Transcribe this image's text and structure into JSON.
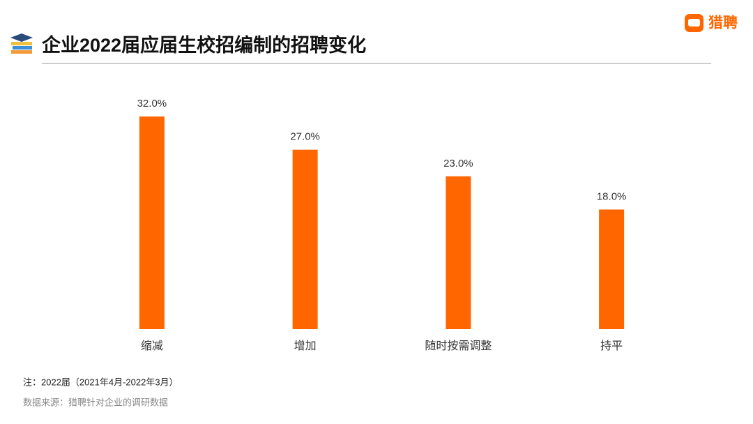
{
  "brand": "猎聘",
  "chart_data": {
    "type": "bar",
    "title": "企业2022届应届生校招编制的招聘变化",
    "categories": [
      "缩减",
      "增加",
      "随时按需调整",
      "持平"
    ],
    "values": [
      32,
      27,
      23,
      18
    ],
    "value_labels": [
      "32.0%",
      "27.0%",
      "23.0%",
      "18.0%"
    ],
    "color": "#ff6600",
    "note": "注：2022届（2021年4月-2022年3月）",
    "source": "数据来源：猎聘针对企业的调研数据"
  }
}
